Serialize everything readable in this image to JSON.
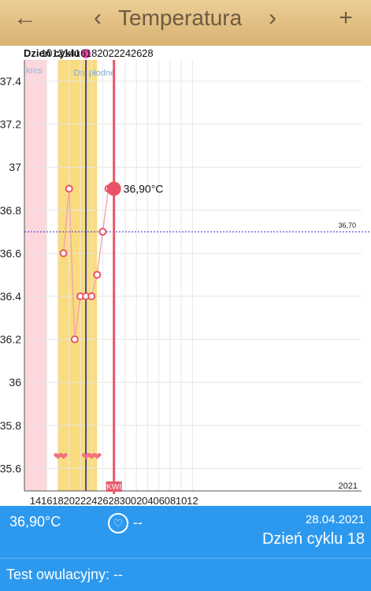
{
  "header": {
    "back_glyph": "←",
    "prev_glyph": "‹",
    "title": "Temperatura",
    "next_glyph": "›",
    "add_glyph": "+"
  },
  "chart_data": {
    "type": "line",
    "top_axis_label": "Dzień cyklu",
    "cycle_day_ticks": [
      "10",
      "12",
      "14",
      "16",
      "18",
      "20",
      "22",
      "24",
      "26",
      "28"
    ],
    "date_ticks": [
      "14",
      "16",
      "18",
      "20",
      "22",
      "24",
      "26",
      "28",
      "30",
      "02",
      "04",
      "06",
      "08",
      "10",
      "12"
    ],
    "y_ticks": [
      "37.4",
      "37.2",
      "37",
      "36.8",
      "36.6",
      "36.4",
      "36.2",
      "36",
      "35.8",
      "35.6"
    ],
    "ylim": [
      35.5,
      37.5
    ],
    "period_label": "kres",
    "fertile_label": "Dni płodne",
    "reference_line": {
      "value": 36.7,
      "label": "36,70"
    },
    "series": [
      {
        "points": [
          {
            "date_index": 5,
            "value": 36.6
          },
          {
            "date_index": 6,
            "value": 36.9
          },
          {
            "date_index": 7,
            "value": 36.2
          },
          {
            "date_index": 8,
            "value": 36.4
          },
          {
            "date_index": 9,
            "value": 36.4
          },
          {
            "date_index": 10,
            "value": 36.4
          },
          {
            "date_index": 11,
            "value": 36.5
          },
          {
            "date_index": 12,
            "value": 36.7
          },
          {
            "date_index": 13,
            "value": 36.9
          },
          {
            "date_index": 14,
            "value": 36.9
          }
        ]
      }
    ],
    "selected_label": "36,90°C",
    "today_marker_label": "KWI",
    "year_label": "2021",
    "heart_count": 5
  },
  "bottom": {
    "temperature": "36,90°C",
    "heart_icon": "♡",
    "heart_value": "--",
    "date": "28.04.2021",
    "cycle_day": "Dzień cyklu 18"
  },
  "test": {
    "label": "Test owulacyjny: --"
  },
  "colors": {
    "header_bg": "#e2bf83",
    "period_band": "#fdd7dc",
    "fertile_band": "#f9dc80",
    "line": "#f5a3ae",
    "marker": "#e85466",
    "selected_line": "#e6596a",
    "ovulation_line": "#3e4ba0",
    "reference_line": "#2a2ad0",
    "panel_blue": "#2d99ee",
    "hearts": "#f1707e"
  }
}
